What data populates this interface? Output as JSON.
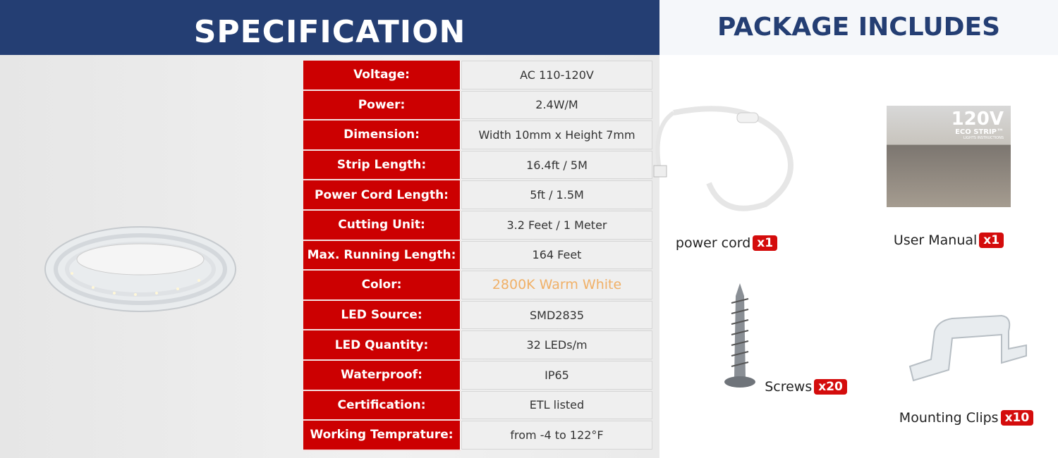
{
  "specification": {
    "title": "SPECIFICATION",
    "rows": [
      {
        "label": "Voltage:",
        "value": "AC 110-120V"
      },
      {
        "label": "Power:",
        "value": "2.4W/M"
      },
      {
        "label": "Dimension:",
        "value": "Width 10mm x Height 7mm"
      },
      {
        "label": "Strip Length:",
        "value": "16.4ft / 5M"
      },
      {
        "label": "Power Cord Length:",
        "value": "5ft / 1.5M"
      },
      {
        "label": "Cutting Unit:",
        "value": "3.2 Feet / 1 Meter"
      },
      {
        "label": "Max. Running Length:",
        "value": "164 Feet"
      },
      {
        "label": "Color:",
        "value": "2800K Warm White"
      },
      {
        "label": "LED Source:",
        "value": "SMD2835"
      },
      {
        "label": "LED Quantity:",
        "value": "32 LEDs/m"
      },
      {
        "label": "Waterproof:",
        "value": "IP65"
      },
      {
        "label": "Certification:",
        "value": "ETL listed"
      },
      {
        "label": "Working Temprature:",
        "value": "from -4 to 122°F"
      }
    ]
  },
  "package": {
    "title": "PACKAGE INCLUDES",
    "items": [
      {
        "name": "power cord",
        "qty": "x1"
      },
      {
        "name": "User Manual",
        "qty": "x1"
      },
      {
        "name": "Screws",
        "qty": "x20"
      },
      {
        "name": "Mounting Clips",
        "qty": "x10"
      }
    ],
    "manual_cover": {
      "title": "120V",
      "subtitle": "ECO STRIP™",
      "small": "LIGHTS INSTRUCTIONS"
    }
  },
  "colors": {
    "navy": "#243e73",
    "red": "#cc0001",
    "warm": "#f0b067"
  }
}
